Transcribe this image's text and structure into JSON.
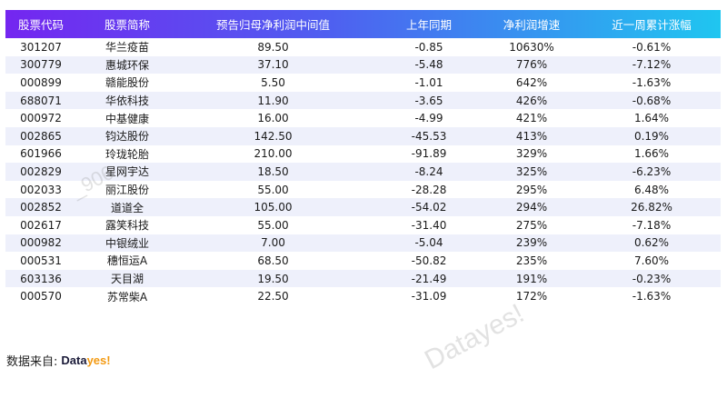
{
  "table": {
    "headers": [
      "股票代码",
      "股票简称",
      "预告归母净利润中间值",
      "上年同期",
      "净利润增速",
      "近一周累计涨幅"
    ],
    "rows": [
      [
        "301207",
        "华兰疫苗",
        "89.50",
        "-0.85",
        "10630%",
        "-0.61%"
      ],
      [
        "300779",
        "惠城环保",
        "37.10",
        "-5.48",
        "776%",
        "-7.12%"
      ],
      [
        "000899",
        "赣能股份",
        "5.50",
        "-1.01",
        "642%",
        "-1.63%"
      ],
      [
        "688071",
        "华依科技",
        "11.90",
        "-3.65",
        "426%",
        "-0.68%"
      ],
      [
        "000972",
        "中基健康",
        "16.00",
        "-4.99",
        "421%",
        "1.64%"
      ],
      [
        "002865",
        "钧达股份",
        "142.50",
        "-45.53",
        "413%",
        "0.19%"
      ],
      [
        "601966",
        "玲珑轮胎",
        "210.00",
        "-91.89",
        "329%",
        "1.66%"
      ],
      [
        "002829",
        "星网宇达",
        "18.50",
        "-8.24",
        "325%",
        "-6.23%"
      ],
      [
        "002033",
        "丽江股份",
        "55.00",
        "-28.28",
        "295%",
        "6.48%"
      ],
      [
        "002852",
        "道道全",
        "105.00",
        "-54.02",
        "294%",
        "26.82%"
      ],
      [
        "002617",
        "露笑科技",
        "55.00",
        "-31.40",
        "275%",
        "-7.18%"
      ],
      [
        "000982",
        "中银绒业",
        "7.00",
        "-5.04",
        "239%",
        "0.62%"
      ],
      [
        "000531",
        "穗恒运A",
        "68.50",
        "-50.82",
        "235%",
        "7.60%"
      ],
      [
        "603136",
        "天目湖",
        "19.50",
        "-21.49",
        "191%",
        "-0.23%"
      ],
      [
        "000570",
        "苏常柴A",
        "22.50",
        "-31.09",
        "172%",
        "-1.63%"
      ]
    ]
  },
  "footer": {
    "source_label": "数据来自:",
    "logo_part1": "Data",
    "logo_part2": "yes!"
  },
  "watermarks": {
    "main": "Datayes!",
    "faint": "_906"
  },
  "colors": {
    "header_gradient": [
      "#7426f0",
      "#4f5ff0",
      "#1fc6f0"
    ],
    "row_stripe": "#eef0fb",
    "logo_orange": "#f39a12"
  }
}
